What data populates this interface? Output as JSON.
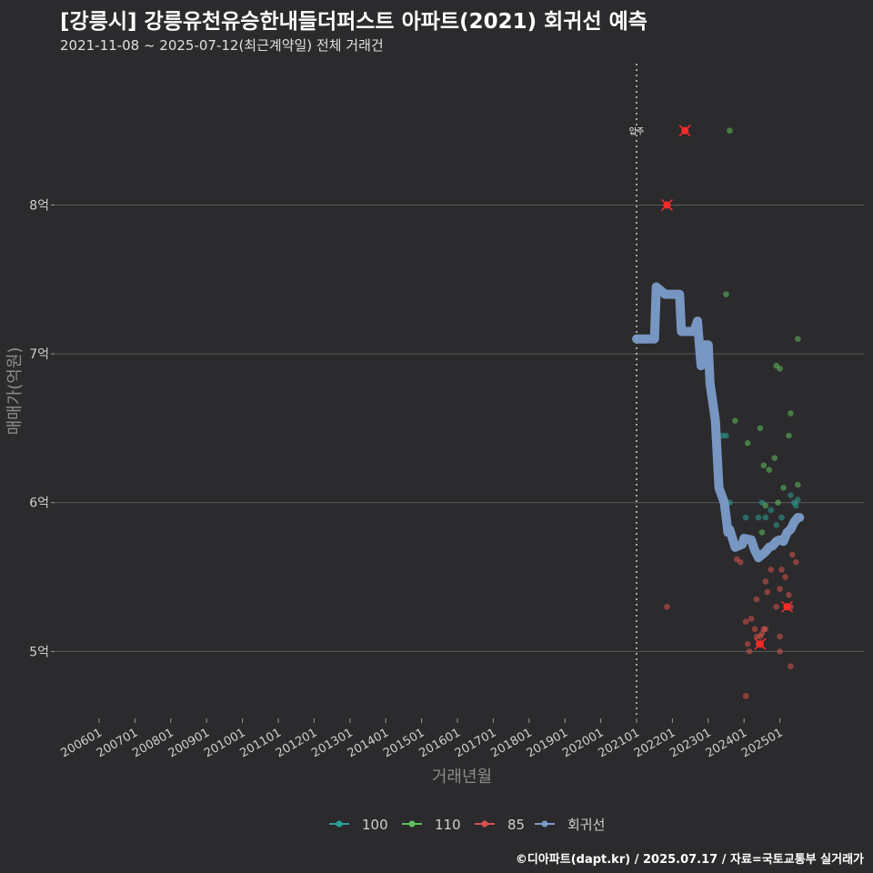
{
  "header": {
    "title": "[강릉시] 강릉유천유승한내들더퍼스트 아파트(2021) 회귀선 예측",
    "subtitle": "2021-11-08 ~ 2025-07-12(최근계약일) 전체 거래건"
  },
  "footer": {
    "caption": "©디아파트(dapt.kr) / 2025.07.17 / 자료=국토교통부 실거래가"
  },
  "colors": {
    "background": "#2b2a2c",
    "grid": "#5a5a5a",
    "series_100": "#2aa198",
    "series_110": "#5fbf5f",
    "series_85": "#d9534f",
    "regression": "#7b9cc9",
    "highlight": "#ff2a2a"
  },
  "chart_data": {
    "type": "scatter",
    "xlabel": "거래년월",
    "ylabel": "매매가(억원)",
    "x_ticks": [
      "200601",
      "200701",
      "200801",
      "200901",
      "201001",
      "201101",
      "201201",
      "201301",
      "201401",
      "201501",
      "201601",
      "201701",
      "201801",
      "201901",
      "202001",
      "202101",
      "202201",
      "202301",
      "202401",
      "202501"
    ],
    "y_ticks": [
      {
        "value": 5,
        "label": "5억"
      },
      {
        "value": 6,
        "label": "6억"
      },
      {
        "value": 7,
        "label": "7억"
      },
      {
        "value": 8,
        "label": "8억"
      }
    ],
    "ylim": [
      4.55,
      8.95
    ],
    "xlim": [
      2004.6,
      2026.2
    ],
    "grid": "horizontal",
    "legend_position": "bottom",
    "annotation": {
      "x": 2021.0,
      "label": "입주"
    },
    "series": [
      {
        "name": "100",
        "color": "#2aa198",
        "points": [
          [
            2023.4,
            6.45
          ],
          [
            2023.5,
            6.45
          ],
          [
            2023.6,
            6.0
          ],
          [
            2024.05,
            5.9
          ],
          [
            2024.4,
            5.9
          ],
          [
            2024.6,
            5.9
          ],
          [
            2024.75,
            5.95
          ],
          [
            2024.9,
            5.85
          ],
          [
            2025.05,
            5.9
          ],
          [
            2025.3,
            6.05
          ],
          [
            2025.4,
            6.0
          ],
          [
            2025.45,
            5.98
          ],
          [
            2025.5,
            6.02
          ],
          [
            2024.5,
            6.0
          ]
        ]
      },
      {
        "name": "110",
        "color": "#5fbf5f",
        "points": [
          [
            2023.6,
            8.5
          ],
          [
            2023.5,
            7.4
          ],
          [
            2024.9,
            6.92
          ],
          [
            2025.0,
            6.9
          ],
          [
            2024.45,
            6.5
          ],
          [
            2024.55,
            6.25
          ],
          [
            2024.7,
            6.22
          ],
          [
            2024.85,
            6.3
          ],
          [
            2025.1,
            6.1
          ],
          [
            2025.3,
            6.6
          ],
          [
            2025.25,
            6.45
          ],
          [
            2025.5,
            7.1
          ],
          [
            2025.5,
            6.12
          ],
          [
            2024.1,
            6.4
          ],
          [
            2023.75,
            6.55
          ],
          [
            2024.6,
            5.98
          ],
          [
            2024.5,
            5.8
          ],
          [
            2024.95,
            6.0
          ]
        ]
      },
      {
        "name": "85",
        "color": "#d9534f",
        "points": [
          [
            2021.85,
            8.0
          ],
          [
            2022.35,
            8.5
          ],
          [
            2021.85,
            5.3
          ],
          [
            2023.9,
            5.6
          ],
          [
            2023.8,
            5.62
          ],
          [
            2024.05,
            5.2
          ],
          [
            2024.1,
            5.05
          ],
          [
            2024.2,
            5.22
          ],
          [
            2024.3,
            5.15
          ],
          [
            2024.35,
            5.1
          ],
          [
            2024.4,
            5.05
          ],
          [
            2024.45,
            5.1
          ],
          [
            2024.5,
            5.12
          ],
          [
            2024.55,
            5.15
          ],
          [
            2024.35,
            5.35
          ],
          [
            2024.6,
            5.47
          ],
          [
            2024.65,
            5.4
          ],
          [
            2024.75,
            5.55
          ],
          [
            2024.9,
            5.3
          ],
          [
            2025.0,
            5.42
          ],
          [
            2025.05,
            5.55
          ],
          [
            2025.15,
            5.5
          ],
          [
            2025.25,
            5.38
          ],
          [
            2025.3,
            5.3
          ],
          [
            2025.35,
            5.65
          ],
          [
            2025.45,
            5.6
          ],
          [
            2025.0,
            5.1
          ],
          [
            2025.0,
            5.0
          ],
          [
            2025.3,
            4.9
          ],
          [
            2024.05,
            4.7
          ],
          [
            2024.15,
            5.0
          ],
          [
            2024.45,
            5.05
          ],
          [
            2025.2,
            5.3
          ],
          [
            2024.6,
            5.15
          ]
        ]
      }
    ],
    "highlighted_points": [
      [
        2021.85,
        8.0
      ],
      [
        2022.35,
        8.5
      ],
      [
        2024.45,
        5.05
      ],
      [
        2025.2,
        5.3
      ]
    ],
    "regression": {
      "name": "회귀선",
      "color": "#7b9cc9",
      "points": [
        [
          2021.0,
          7.1
        ],
        [
          2021.5,
          7.1
        ],
        [
          2021.55,
          7.45
        ],
        [
          2021.8,
          7.4
        ],
        [
          2022.2,
          7.4
        ],
        [
          2022.25,
          7.15
        ],
        [
          2022.6,
          7.15
        ],
        [
          2022.7,
          7.22
        ],
        [
          2022.8,
          6.92
        ],
        [
          2022.85,
          7.06
        ],
        [
          2023.0,
          7.06
        ],
        [
          2023.05,
          6.8
        ],
        [
          2023.2,
          6.55
        ],
        [
          2023.3,
          6.1
        ],
        [
          2023.45,
          6.0
        ],
        [
          2023.55,
          5.8
        ],
        [
          2023.6,
          5.82
        ],
        [
          2023.75,
          5.7
        ],
        [
          2023.95,
          5.72
        ],
        [
          2024.0,
          5.76
        ],
        [
          2024.2,
          5.75
        ],
        [
          2024.3,
          5.68
        ],
        [
          2024.4,
          5.63
        ],
        [
          2024.6,
          5.67
        ],
        [
          2024.7,
          5.7
        ],
        [
          2024.8,
          5.71
        ],
        [
          2024.9,
          5.74
        ],
        [
          2025.0,
          5.75
        ],
        [
          2025.1,
          5.74
        ],
        [
          2025.2,
          5.8
        ],
        [
          2025.3,
          5.82
        ],
        [
          2025.4,
          5.87
        ],
        [
          2025.5,
          5.9
        ],
        [
          2025.55,
          5.9
        ]
      ]
    },
    "legend": [
      {
        "name": "100",
        "color": "#2aa198"
      },
      {
        "name": "110",
        "color": "#5fbf5f"
      },
      {
        "name": "85",
        "color": "#d9534f"
      },
      {
        "name": "회귀선",
        "color": "#7b9cc9"
      }
    ]
  }
}
